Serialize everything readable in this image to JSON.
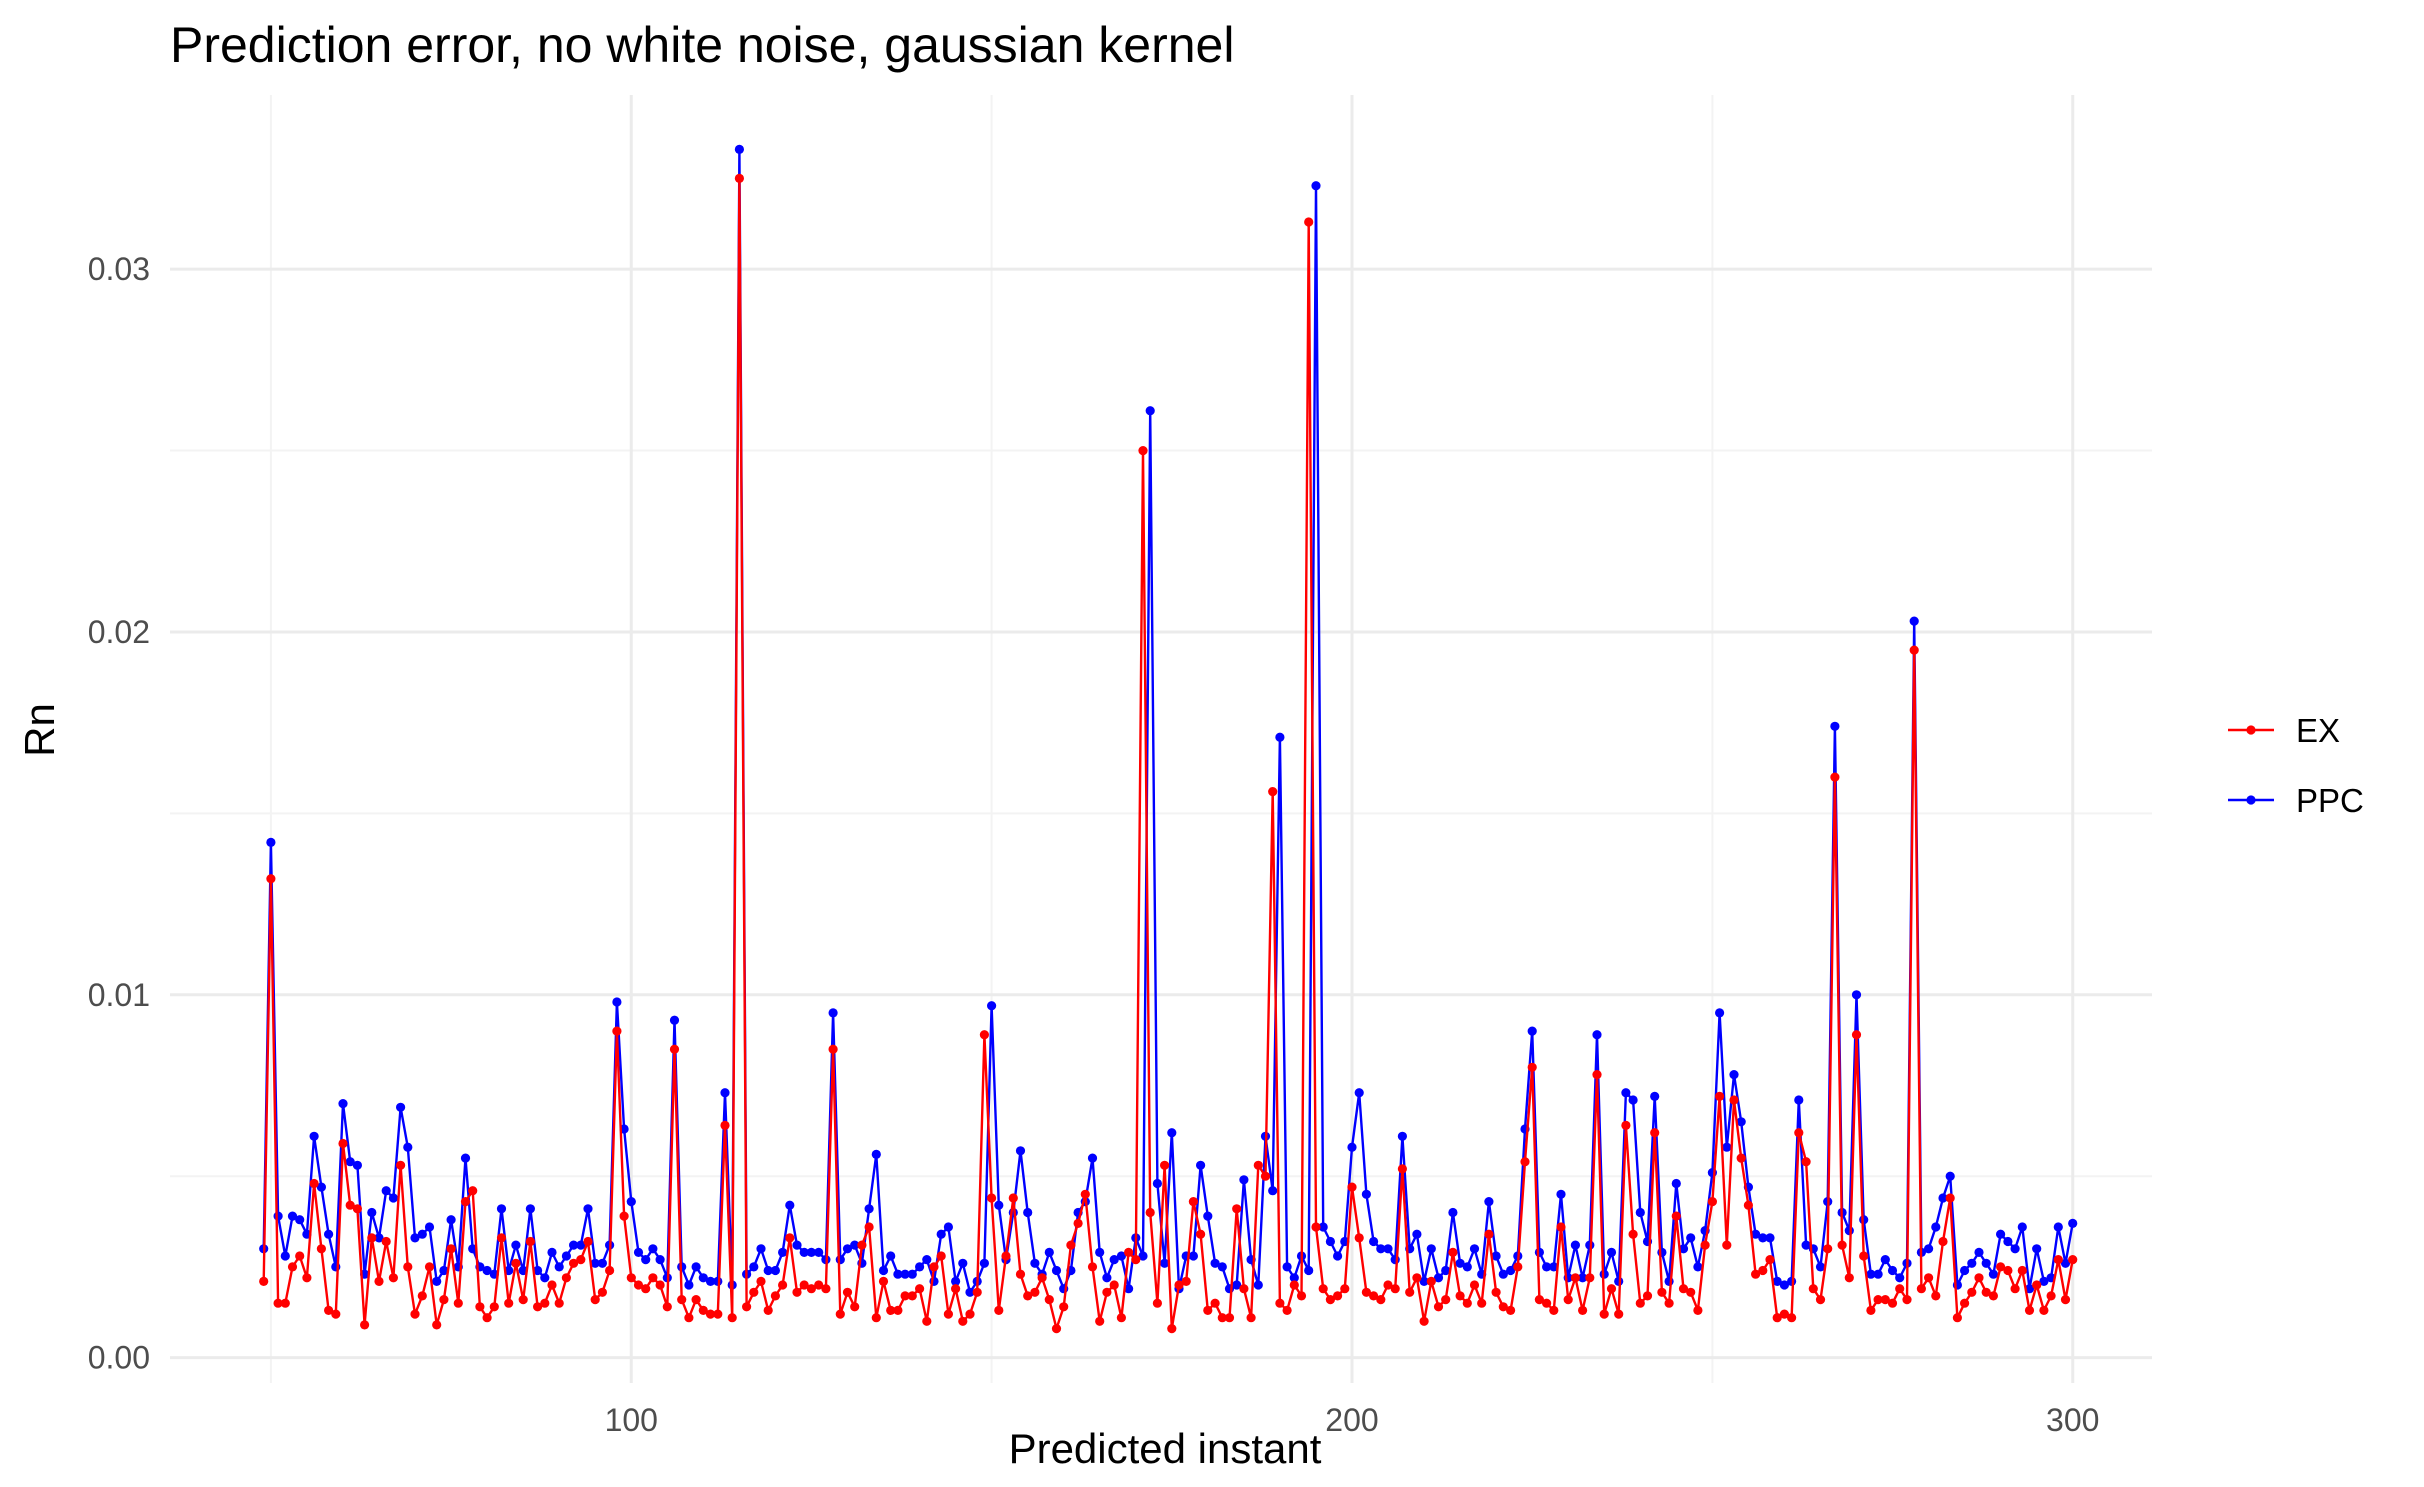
{
  "chart_data": {
    "type": "line",
    "title": "Prediction error, no white noise, gaussian kernel",
    "xlabel": "Predicted instant",
    "ylabel": "Rn",
    "xlim": [
      36,
      311
    ],
    "ylim": [
      -0.0007,
      0.0348
    ],
    "x_ticks": [
      100,
      200,
      300
    ],
    "x_tick_labels": [
      "100",
      "200",
      "300"
    ],
    "x_minor_ticks": [
      50,
      150,
      250
    ],
    "y_ticks": [
      0.0,
      0.01,
      0.02,
      0.03
    ],
    "y_tick_labels": [
      "0.00",
      "0.01",
      "0.02",
      "0.03"
    ],
    "y_minor_ticks": [
      0.005,
      0.015,
      0.025
    ],
    "grid": true,
    "legend_position": "right",
    "markers": true,
    "x_start": 49,
    "series": [
      {
        "name": "EX",
        "color": "#ff0000",
        "values": [
          0.0021,
          0.0132,
          0.0015,
          0.0015,
          0.0025,
          0.0028,
          0.0022,
          0.0048,
          0.003,
          0.0013,
          0.0012,
          0.0059,
          0.0042,
          0.0041,
          0.0009,
          0.0033,
          0.0021,
          0.0032,
          0.0022,
          0.0053,
          0.0025,
          0.0012,
          0.0017,
          0.0025,
          0.0009,
          0.0016,
          0.003,
          0.0015,
          0.0043,
          0.0046,
          0.0014,
          0.0011,
          0.0014,
          0.0033,
          0.0015,
          0.0026,
          0.0016,
          0.0032,
          0.0014,
          0.0015,
          0.002,
          0.0015,
          0.0022,
          0.0026,
          0.0027,
          0.0032,
          0.0016,
          0.0018,
          0.0024,
          0.009,
          0.0039,
          0.0022,
          0.002,
          0.0019,
          0.0022,
          0.002,
          0.0014,
          0.0085,
          0.0016,
          0.0011,
          0.0016,
          0.0013,
          0.0012,
          0.0012,
          0.0064,
          0.0011,
          0.0325,
          0.0014,
          0.0018,
          0.0021,
          0.0013,
          0.0017,
          0.002,
          0.0033,
          0.0018,
          0.002,
          0.0019,
          0.002,
          0.0019,
          0.0085,
          0.0012,
          0.0018,
          0.0014,
          0.0031,
          0.0036,
          0.0011,
          0.0021,
          0.0013,
          0.0013,
          0.0017,
          0.0017,
          0.0019,
          0.001,
          0.0025,
          0.0028,
          0.0012,
          0.0019,
          0.001,
          0.0012,
          0.0018,
          0.0089,
          0.0044,
          0.0013,
          0.0028,
          0.0044,
          0.0023,
          0.0017,
          0.0018,
          0.0022,
          0.0016,
          0.0008,
          0.0014,
          0.0031,
          0.0037,
          0.0045,
          0.0025,
          0.001,
          0.0018,
          0.002,
          0.0011,
          0.0029,
          0.0027,
          0.025,
          0.004,
          0.0015,
          0.0053,
          0.0008,
          0.002,
          0.0021,
          0.0043,
          0.0034,
          0.0013,
          0.0015,
          0.0011,
          0.0011,
          0.0041,
          0.0019,
          0.0011,
          0.0053,
          0.005,
          0.0156,
          0.0015,
          0.0013,
          0.002,
          0.0017,
          0.0313,
          0.0036,
          0.0019,
          0.0016,
          0.0017,
          0.0019,
          0.0047,
          0.0033,
          0.0018,
          0.0017,
          0.0016,
          0.002,
          0.0019,
          0.0052,
          0.0018,
          0.0022,
          0.001,
          0.0021,
          0.0014,
          0.0016,
          0.0029,
          0.0017,
          0.0015,
          0.002,
          0.0015,
          0.0034,
          0.0018,
          0.0014,
          0.0013,
          0.0025,
          0.0054,
          0.008,
          0.0016,
          0.0015,
          0.0013,
          0.0036,
          0.0016,
          0.0022,
          0.0013,
          0.0022,
          0.0078,
          0.0012,
          0.0019,
          0.0012,
          0.0064,
          0.0034,
          0.0015,
          0.0017,
          0.0062,
          0.0018,
          0.0015,
          0.0039,
          0.0019,
          0.0018,
          0.0013,
          0.0031,
          0.0043,
          0.0072,
          0.0031,
          0.0071,
          0.0055,
          0.0042,
          0.0023,
          0.0024,
          0.0027,
          0.0011,
          0.0012,
          0.0011,
          0.0062,
          0.0054,
          0.0019,
          0.0016,
          0.003,
          0.016,
          0.0031,
          0.0022,
          0.0089,
          0.0028,
          0.0013,
          0.0016,
          0.0016,
          0.0015,
          0.0019,
          0.0016,
          0.0195,
          0.0019,
          0.0022,
          0.0017,
          0.0032,
          0.0044,
          0.0011,
          0.0015,
          0.0018,
          0.0022,
          0.0018,
          0.0017,
          0.0025,
          0.0024,
          0.0019,
          0.0024,
          0.0013,
          0.002,
          0.0013,
          0.0017,
          0.0027,
          0.0016,
          0.0027
        ]
      },
      {
        "name": "PPC",
        "color": "#0000ff",
        "values": [
          0.003,
          0.0142,
          0.0039,
          0.0028,
          0.0039,
          0.0038,
          0.0034,
          0.0061,
          0.0047,
          0.0034,
          0.0025,
          0.007,
          0.0054,
          0.0053,
          0.0023,
          0.004,
          0.0033,
          0.0046,
          0.0044,
          0.0069,
          0.0058,
          0.0033,
          0.0034,
          0.0036,
          0.0021,
          0.0024,
          0.0038,
          0.0025,
          0.0055,
          0.003,
          0.0025,
          0.0024,
          0.0023,
          0.0041,
          0.0024,
          0.0031,
          0.0024,
          0.0041,
          0.0024,
          0.0022,
          0.0029,
          0.0025,
          0.0028,
          0.0031,
          0.0031,
          0.0041,
          0.0026,
          0.0026,
          0.0031,
          0.0098,
          0.0063,
          0.0043,
          0.0029,
          0.0027,
          0.003,
          0.0027,
          0.0022,
          0.0093,
          0.0025,
          0.002,
          0.0025,
          0.0022,
          0.0021,
          0.0021,
          0.0073,
          0.002,
          0.0333,
          0.0023,
          0.0025,
          0.003,
          0.0024,
          0.0024,
          0.0029,
          0.0042,
          0.0031,
          0.0029,
          0.0029,
          0.0029,
          0.0027,
          0.0095,
          0.0027,
          0.003,
          0.0031,
          0.0026,
          0.0041,
          0.0056,
          0.0024,
          0.0028,
          0.0023,
          0.0023,
          0.0023,
          0.0025,
          0.0027,
          0.0021,
          0.0034,
          0.0036,
          0.0021,
          0.0026,
          0.0018,
          0.0021,
          0.0026,
          0.0097,
          0.0042,
          0.0027,
          0.004,
          0.0057,
          0.004,
          0.0026,
          0.0023,
          0.0029,
          0.0024,
          0.0019,
          0.0024,
          0.004,
          0.0043,
          0.0055,
          0.0029,
          0.0022,
          0.0027,
          0.0028,
          0.0019,
          0.0033,
          0.0028,
          0.0261,
          0.0048,
          0.0026,
          0.0062,
          0.0019,
          0.0028,
          0.0028,
          0.0053,
          0.0039,
          0.0026,
          0.0025,
          0.0019,
          0.002,
          0.0049,
          0.0027,
          0.002,
          0.0061,
          0.0046,
          0.0171,
          0.0025,
          0.0022,
          0.0028,
          0.0024,
          0.0323,
          0.0036,
          0.0032,
          0.0028,
          0.0032,
          0.0058,
          0.0073,
          0.0045,
          0.0032,
          0.003,
          0.003,
          0.0027,
          0.0061,
          0.003,
          0.0034,
          0.0021,
          0.003,
          0.0022,
          0.0024,
          0.004,
          0.0026,
          0.0025,
          0.003,
          0.0023,
          0.0043,
          0.0028,
          0.0023,
          0.0024,
          0.0028,
          0.0063,
          0.009,
          0.0029,
          0.0025,
          0.0025,
          0.0045,
          0.0022,
          0.0031,
          0.0022,
          0.0031,
          0.0089,
          0.0023,
          0.0029,
          0.0021,
          0.0073,
          0.0071,
          0.004,
          0.0032,
          0.0072,
          0.0029,
          0.0021,
          0.0048,
          0.003,
          0.0033,
          0.0025,
          0.0035,
          0.0051,
          0.0095,
          0.0058,
          0.0078,
          0.0065,
          0.0047,
          0.0034,
          0.0033,
          0.0033,
          0.0021,
          0.002,
          0.0021,
          0.0071,
          0.0031,
          0.003,
          0.0025,
          0.0043,
          0.0174,
          0.004,
          0.0035,
          0.01,
          0.0038,
          0.0023,
          0.0023,
          0.0027,
          0.0024,
          0.0022,
          0.0026,
          0.0203,
          0.0029,
          0.003,
          0.0036,
          0.0044,
          0.005,
          0.002,
          0.0024,
          0.0026,
          0.0029,
          0.0026,
          0.0023,
          0.0034,
          0.0032,
          0.003,
          0.0036,
          0.0019,
          0.003,
          0.0021,
          0.0022,
          0.0036,
          0.0026,
          0.0037
        ]
      }
    ]
  }
}
